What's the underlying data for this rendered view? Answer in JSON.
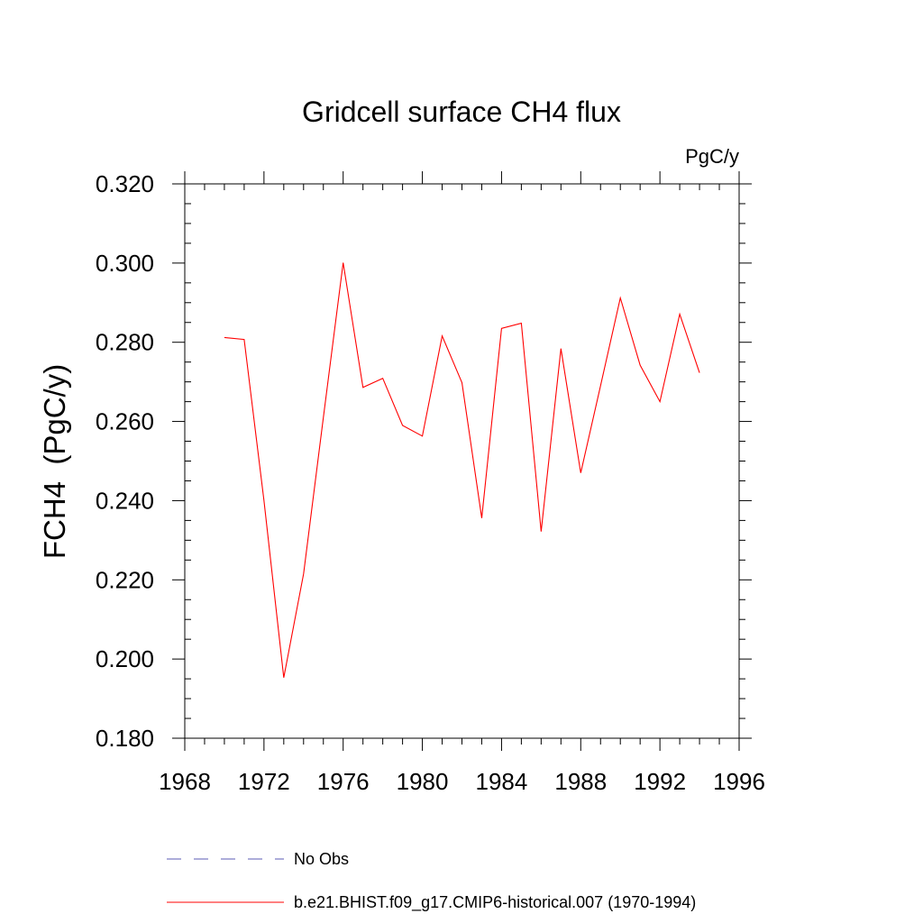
{
  "chart_data": {
    "type": "line",
    "title": "Gridcell surface CH4 flux",
    "units_label": "PgC/y",
    "ylabel": "FCH4  (PgC/y)",
    "xlabel": "",
    "xlim": [
      1968,
      1996
    ],
    "ylim": [
      0.18,
      0.32
    ],
    "x_ticks": [
      1968,
      1972,
      1976,
      1980,
      1984,
      1988,
      1992,
      1996
    ],
    "x_minor_step": 1,
    "y_ticks": [
      0.18,
      0.2,
      0.22,
      0.24,
      0.26,
      0.28,
      0.3,
      0.32
    ],
    "y_tick_labels": [
      "0.180",
      "0.200",
      "0.220",
      "0.240",
      "0.260",
      "0.280",
      "0.300",
      "0.320"
    ],
    "y_minor_step": 0.005,
    "grid": false,
    "series": [
      {
        "name": "b.e21.BHIST.f09_g17.CMIP6-historical.007 (1970-1994)",
        "color": "#ff0000",
        "style": "solid",
        "x": [
          1970,
          1971,
          1972,
          1973,
          1974,
          1975,
          1976,
          1977,
          1978,
          1979,
          1980,
          1981,
          1982,
          1983,
          1984,
          1985,
          1986,
          1987,
          1988,
          1989,
          1990,
          1991,
          1992,
          1993,
          1994
        ],
        "values": [
          0.2812,
          0.2807,
          0.24,
          0.1953,
          0.2215,
          0.261,
          0.3001,
          0.2686,
          0.2709,
          0.259,
          0.2563,
          0.2816,
          0.2698,
          0.2356,
          0.2835,
          0.2848,
          0.2322,
          0.2784,
          0.247,
          0.269,
          0.2912,
          0.2742,
          0.265,
          0.2871,
          0.2723
        ]
      }
    ],
    "legend": {
      "placement": "bottom-left",
      "entries": [
        {
          "label": "No Obs",
          "color": "#5b5bb5",
          "style": "dashed"
        },
        {
          "label": "b.e21.BHIST.f09_g17.CMIP6-historical.007 (1970-1994)",
          "color": "#ff0000",
          "style": "solid"
        }
      ]
    }
  }
}
